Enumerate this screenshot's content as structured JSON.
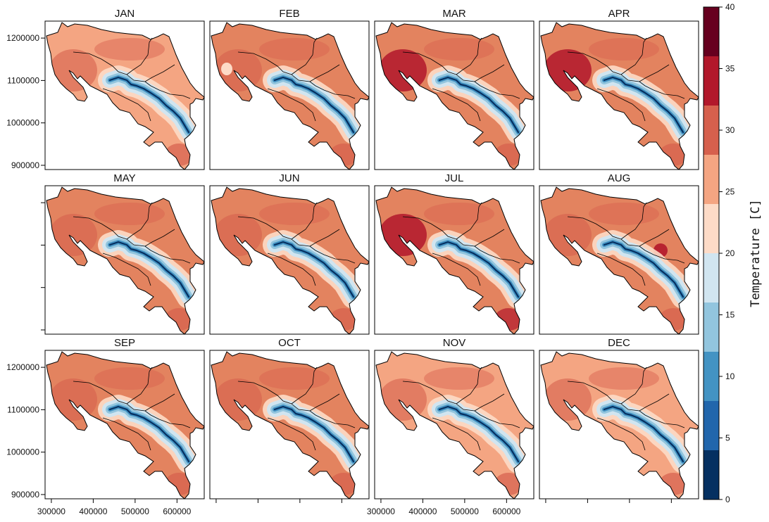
{
  "chart_data": {
    "type": "heatmap",
    "title": "",
    "panels": [
      "JAN",
      "FEB",
      "MAR",
      "APR",
      "MAY",
      "JUN",
      "JUL",
      "AUG",
      "SEP",
      "OCT",
      "NOV",
      "DEC"
    ],
    "layout": {
      "rows": 3,
      "cols": 4
    },
    "x_ticks": [
      300000,
      400000,
      500000,
      600000
    ],
    "x_tick_labels": [
      "300000",
      "400000",
      "500000",
      "600000"
    ],
    "y_ticks": [
      900000,
      1000000,
      1100000,
      1200000
    ],
    "y_tick_labels": [
      "900000",
      "1000000",
      "1100000",
      "1200000"
    ],
    "xlim": [
      285000,
      665000
    ],
    "ylim": [
      890000,
      1240000
    ],
    "colorbar": {
      "title": "Temperature [C]",
      "range": [
        0,
        40
      ],
      "breaks": [
        0,
        2.5,
        5,
        7.5,
        10,
        12.5,
        15,
        17.5,
        20,
        22.5,
        25,
        27.5,
        30,
        32.5,
        35,
        37.5,
        40
      ],
      "labels": [
        "0",
        "5",
        "10",
        "15",
        "20",
        "25",
        "30",
        "35",
        "40"
      ],
      "label_values": [
        0,
        5,
        10,
        15,
        20,
        25,
        30,
        35,
        40
      ],
      "colors": [
        "#053061",
        "#2166ac",
        "#4393c3",
        "#92c5de",
        "#d1e5f0",
        "#fddbc7",
        "#f4a582",
        "#d6604d",
        "#b2182b",
        "#67001f"
      ],
      "placement": "right"
    },
    "boundary_color": "#000000"
  }
}
